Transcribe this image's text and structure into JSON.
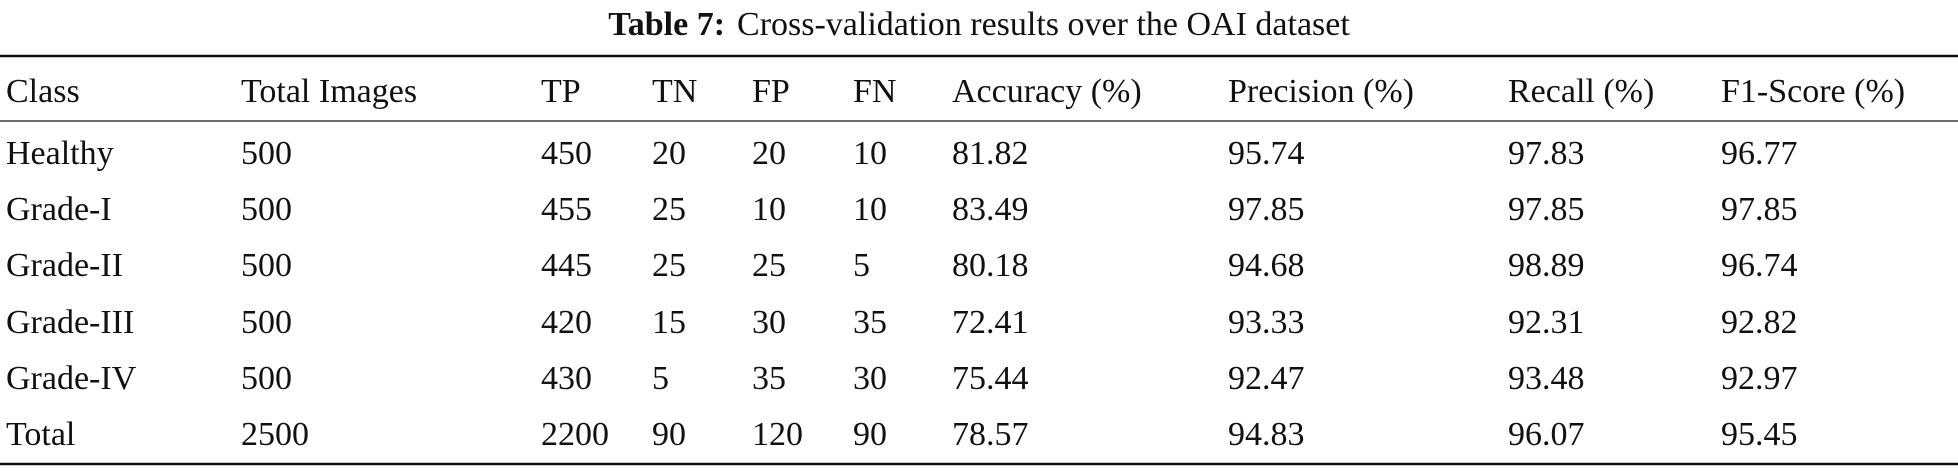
{
  "caption": {
    "label": "Table 7:",
    "text": "Cross-validation results over the OAI dataset"
  },
  "table": {
    "header": [
      "Class",
      "Total Images",
      "TP",
      "TN",
      "FP",
      "FN",
      "Accuracy (%)",
      "Precision (%)",
      "Recall (%)",
      "F1-Score (%)"
    ],
    "rows": [
      [
        "Healthy",
        500,
        450,
        20,
        20,
        10,
        81.82,
        95.74,
        97.83,
        96.77
      ],
      [
        "Grade-I",
        500,
        455,
        25,
        10,
        10,
        83.49,
        97.85,
        97.85,
        97.85
      ],
      [
        "Grade-II",
        500,
        445,
        25,
        25,
        5,
        80.18,
        94.68,
        98.89,
        96.74
      ],
      [
        "Grade-III",
        500,
        420,
        15,
        30,
        35,
        72.41,
        93.33,
        92.31,
        92.82
      ],
      [
        "Grade-IV",
        500,
        430,
        5,
        35,
        30,
        75.44,
        92.47,
        93.48,
        92.97
      ],
      [
        "Total",
        2500,
        2200,
        90,
        120,
        90,
        78.57,
        94.83,
        96.07,
        95.45
      ]
    ]
  }
}
